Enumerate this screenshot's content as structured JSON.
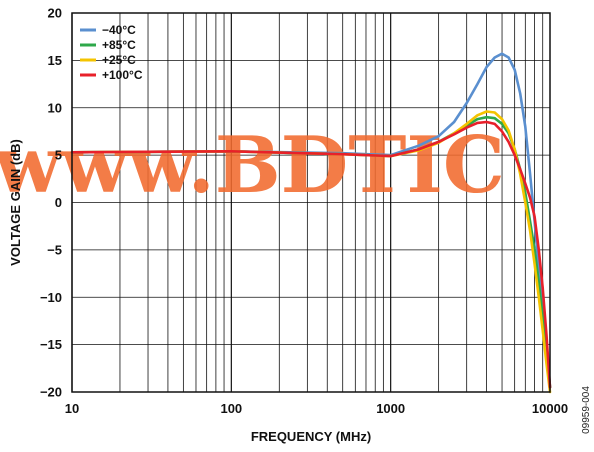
{
  "watermark": "www.BDTIC",
  "figure_code": "09959-004",
  "chart_data": {
    "type": "line",
    "xscale": "log",
    "xlim": [
      10,
      10000
    ],
    "ylim": [
      -20,
      20
    ],
    "xlabel": "FREQUENCY (MHz)",
    "ylabel": "VOLTAGE GAIN (dB)",
    "xticks": [
      10,
      100,
      1000,
      10000
    ],
    "xtick_labels": [
      "10",
      "100",
      "1000",
      "10000"
    ],
    "yticks": [
      -20,
      -15,
      -10,
      -5,
      0,
      5,
      10,
      15,
      20
    ],
    "ytick_labels": [
      "−20",
      "−15",
      "−10",
      "−5",
      "0",
      "5",
      "10",
      "15",
      "20"
    ],
    "grid": true,
    "legend_position": "top-left",
    "series": [
      {
        "name": "−40°C",
        "color": "#5a8fcf",
        "x": [
          10,
          100,
          500,
          1000,
          1500,
          2000,
          2500,
          3000,
          3500,
          4000,
          4500,
          5000,
          5500,
          6000,
          6500,
          7000,
          7500,
          8000,
          8500,
          9000,
          9500,
          10000
        ],
        "y": [
          5.3,
          5.4,
          5.2,
          5.0,
          6.0,
          7.0,
          8.5,
          10.5,
          12.5,
          14.3,
          15.3,
          15.7,
          15.3,
          14.0,
          11.5,
          8.0,
          3.0,
          -2.0,
          -7.0,
          -11.0,
          -15.0,
          -19.5
        ]
      },
      {
        "name": "+85°C",
        "color": "#2ea84a",
        "x": [
          10,
          100,
          500,
          1000,
          1500,
          2000,
          2500,
          3000,
          3500,
          4000,
          4500,
          5000,
          5500,
          6000,
          6500,
          7000,
          7500,
          8000,
          8500,
          9000,
          9500,
          10000
        ],
        "y": [
          5.3,
          5.4,
          5.1,
          4.9,
          5.6,
          6.4,
          7.3,
          8.1,
          8.8,
          9.0,
          8.9,
          8.3,
          7.3,
          5.6,
          3.5,
          1.0,
          -2.0,
          -5.0,
          -8.5,
          -12.0,
          -15.5,
          -19.5
        ]
      },
      {
        "name": "+25°C",
        "color": "#f4c400",
        "x": [
          10,
          100,
          500,
          1000,
          1500,
          2000,
          2500,
          3000,
          3500,
          4000,
          4500,
          5000,
          5500,
          6000,
          6500,
          7000,
          7500,
          8000,
          8500,
          9000,
          9500,
          10000
        ],
        "y": [
          5.3,
          5.4,
          5.1,
          4.9,
          5.5,
          6.3,
          7.3,
          8.3,
          9.2,
          9.6,
          9.5,
          8.8,
          7.6,
          5.6,
          3.0,
          0.0,
          -3.0,
          -6.5,
          -10.0,
          -13.5,
          -17.0,
          -20.0
        ]
      },
      {
        "name": "+100°C",
        "color": "#e8202a",
        "x": [
          10,
          100,
          500,
          1000,
          1500,
          2000,
          2500,
          3000,
          3500,
          4000,
          4500,
          5000,
          5500,
          6000,
          6500,
          7000,
          7500,
          8000,
          8500,
          9000,
          9500,
          10000
        ],
        "y": [
          5.3,
          5.4,
          5.1,
          4.9,
          5.6,
          6.4,
          7.2,
          7.9,
          8.4,
          8.5,
          8.3,
          7.5,
          6.4,
          5.0,
          3.5,
          2.0,
          0.5,
          -1.5,
          -5.0,
          -9.0,
          -14.0,
          -19.5
        ]
      }
    ]
  }
}
